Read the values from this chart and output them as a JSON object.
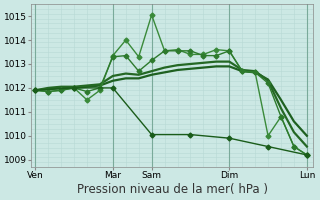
{
  "bg_color": "#cce8e4",
  "grid_color_h": "#b8d8d4",
  "grid_color_v": "#9ec8c4",
  "xlabel": "Pression niveau de la mer( hPa )",
  "xlabel_fontsize": 8.5,
  "tick_fontsize": 6.5,
  "ylim": [
    1008.7,
    1015.5
  ],
  "yticks": [
    1009,
    1010,
    1011,
    1012,
    1013,
    1014,
    1015
  ],
  "xtick_labels": [
    "Ven",
    "Mar",
    "Sam",
    "Dim",
    "Lun"
  ],
  "xtick_positions": [
    0,
    6,
    9,
    15,
    21
  ],
  "vlines": [
    0,
    6,
    9,
    15,
    21
  ],
  "series": [
    {
      "x": [
        0,
        1,
        2,
        3,
        4,
        5,
        6,
        7,
        8,
        9,
        10,
        11,
        12,
        13,
        14,
        15,
        16,
        17,
        18,
        19,
        20,
        21
      ],
      "y": [
        1011.9,
        1011.85,
        1011.9,
        1012.0,
        1011.5,
        1011.9,
        1013.35,
        1014.0,
        1013.3,
        1015.05,
        1013.55,
        1013.6,
        1013.4,
        1013.4,
        1013.6,
        1013.55,
        1012.7,
        1012.65,
        1010.0,
        1010.8,
        1009.55,
        1009.2
      ],
      "marker": "D",
      "markersize": 2.5,
      "linewidth": 1.0,
      "color": "#3a8a3a"
    },
    {
      "x": [
        0,
        1,
        2,
        3,
        4,
        5,
        6,
        7,
        8,
        9,
        10,
        11,
        12,
        13,
        14,
        15,
        16,
        17,
        18,
        19,
        20,
        21
      ],
      "y": [
        1011.9,
        1011.85,
        1011.9,
        1012.0,
        1011.85,
        1012.0,
        1013.3,
        1013.35,
        1012.7,
        1013.15,
        1013.55,
        1013.55,
        1013.55,
        1013.35,
        1013.35,
        1013.55,
        1012.7,
        1012.65,
        1012.2,
        1010.8,
        1009.55,
        1009.2
      ],
      "marker": "D",
      "markersize": 2.5,
      "linewidth": 1.0,
      "color": "#2d7a2d"
    },
    {
      "x": [
        0,
        1,
        2,
        3,
        4,
        5,
        6,
        7,
        8,
        9,
        10,
        11,
        12,
        13,
        14,
        15,
        16,
        17,
        18,
        19,
        20,
        21
      ],
      "y": [
        1011.9,
        1011.95,
        1012.0,
        1012.0,
        1012.05,
        1012.1,
        1012.3,
        1012.4,
        1012.4,
        1012.55,
        1012.65,
        1012.75,
        1012.8,
        1012.85,
        1012.9,
        1012.9,
        1012.7,
        1012.65,
        1012.35,
        1011.5,
        1010.6,
        1010.0
      ],
      "marker": null,
      "markersize": 0,
      "linewidth": 1.6,
      "color": "#1e6020"
    },
    {
      "x": [
        0,
        1,
        2,
        3,
        4,
        5,
        6,
        7,
        8,
        9,
        10,
        11,
        12,
        13,
        14,
        15,
        16,
        17,
        18,
        19,
        20,
        21
      ],
      "y": [
        1011.9,
        1012.0,
        1012.05,
        1012.05,
        1012.1,
        1012.15,
        1012.5,
        1012.6,
        1012.55,
        1012.7,
        1012.85,
        1012.95,
        1013.0,
        1013.05,
        1013.1,
        1013.1,
        1012.75,
        1012.7,
        1012.3,
        1011.15,
        1010.15,
        1009.55
      ],
      "marker": null,
      "markersize": 0,
      "linewidth": 1.6,
      "color": "#246824"
    },
    {
      "x": [
        0,
        3,
        6,
        9,
        12,
        15,
        18,
        21
      ],
      "y": [
        1011.9,
        1012.0,
        1012.0,
        1010.05,
        1010.05,
        1009.9,
        1009.55,
        1009.2
      ],
      "marker": "D",
      "markersize": 2.5,
      "linewidth": 1.0,
      "color": "#1a5c1a"
    }
  ]
}
